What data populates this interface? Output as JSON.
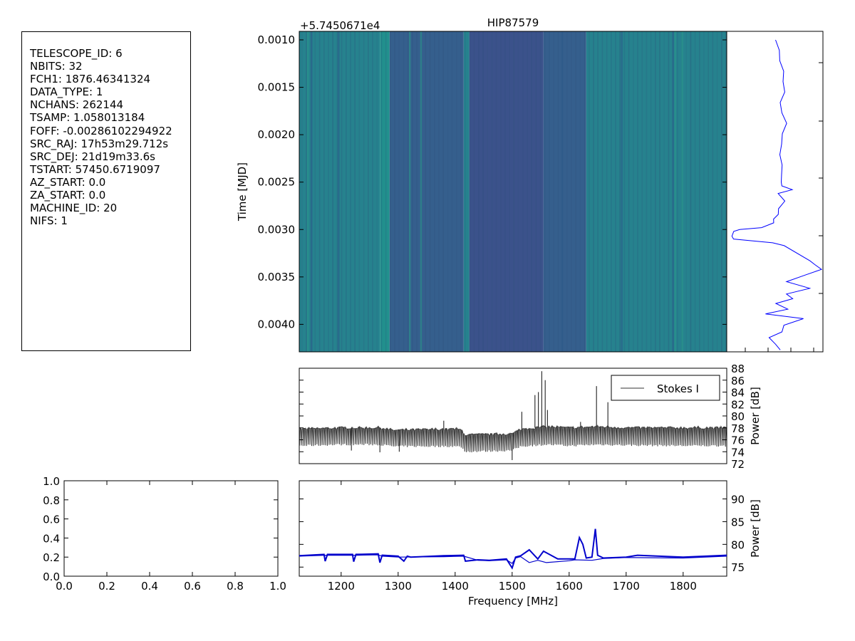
{
  "colors": {
    "waterfall_light": "#21908d",
    "waterfall_mid": "#26828e",
    "waterfall_dark": "#355f8d",
    "waterfall_darker": "#3b528b",
    "timeseries_line": "#0000ff",
    "spectrum_line": "#333333",
    "bottom_lines": "#0000cc"
  },
  "header": {
    "lines": [
      "TELESCOPE_ID:  6",
      "NBITS:  32",
      "FCH1:  1876.46341324",
      "DATA_TYPE:  1",
      "NCHANS:  262144",
      "TSAMP:  1.058013184",
      "FOFF:  -0.00286102294922",
      "SRC_RAJ:  17h53m29.712s",
      "SRC_DEJ:  21d19m33.6s",
      "TSTART:  57450.6719097",
      "AZ_START:  0.0",
      "ZA_START:  0.0",
      "MACHINE_ID:  20",
      "NIFS:  1"
    ]
  },
  "chart_data": [
    {
      "id": "waterfall",
      "type": "heatmap",
      "title": "HIP87579",
      "offset_text": "+5.7450671e4",
      "ylabel": "Time [MJD]",
      "ylim": [
        0.00429,
        0.00091
      ],
      "xlim": [
        1126.5,
        1876.5
      ],
      "yticks": [
        0.001,
        0.0015,
        0.002,
        0.0025,
        0.003,
        0.0035,
        0.004
      ],
      "ytick_labels": [
        "0.0010",
        "0.0015",
        "0.0020",
        "0.0025",
        "0.0030",
        "0.0035",
        "0.0040"
      ],
      "grid": false,
      "bands": [
        {
          "x": [
            1126.5,
            1268
          ],
          "level": "mid"
        },
        {
          "x": [
            1268,
            1285
          ],
          "level": "light"
        },
        {
          "x": [
            1285,
            1415
          ],
          "level": "dark"
        },
        {
          "x": [
            1415,
            1425
          ],
          "level": "mid"
        },
        {
          "x": [
            1425,
            1555
          ],
          "level": "darker"
        },
        {
          "x": [
            1555,
            1630
          ],
          "level": "dark"
        },
        {
          "x": [
            1630,
            1876.5
          ],
          "level": "mid"
        }
      ]
    },
    {
      "id": "time_series",
      "type": "line",
      "note": "integrated power vs time, orientation vertical",
      "ylim": [
        0.00429,
        0.00091
      ],
      "x": [
        0.52,
        0.53,
        0.55,
        0.58,
        0.6,
        0.58,
        0.57,
        0.58,
        0.6,
        0.6,
        0.57,
        0.58,
        0.55,
        0.56,
        0.54,
        0.6,
        0.66,
        0.55,
        0.54,
        0.6,
        0.56,
        0.55,
        0.55,
        0.5,
        0.48,
        0.38,
        0.1,
        0.04,
        0.02,
        0.05,
        0.5,
        0.62,
        0.85,
        0.95,
        1.0,
        0.8,
        0.65,
        0.85,
        0.6,
        0.66,
        0.48,
        0.62,
        0.4,
        0.82,
        0.58,
        0.55,
        0.44,
        0.52,
        0.56
      ],
      "y": [
        0.001,
        0.00111,
        0.00122,
        0.00133,
        0.00144,
        0.00155,
        0.00166,
        0.00177,
        0.00188,
        0.00199,
        0.0021,
        0.00221,
        0.00232,
        0.00243,
        0.0025,
        0.00254,
        0.00258,
        0.00262,
        0.00266,
        0.0027,
        0.00274,
        0.00278,
        0.00284,
        0.00289,
        0.00293,
        0.00298,
        0.003,
        0.00302,
        0.00307,
        0.0031,
        0.00314,
        0.00317,
        0.00333,
        0.00337,
        0.00342,
        0.00348,
        0.00355,
        0.00362,
        0.00368,
        0.00373,
        0.00378,
        0.00384,
        0.00389,
        0.00394,
        0.00401,
        0.00408,
        0.00414,
        0.00421,
        0.00427
      ]
    },
    {
      "id": "spectrum",
      "type": "line",
      "legend": [
        "Stokes I"
      ],
      "legend_position": "upper right",
      "ylabel": "Power [dB]",
      "xlim": [
        1126.5,
        1876.5
      ],
      "ylim": [
        72,
        88
      ],
      "yticks": [
        72,
        74,
        76,
        78,
        80,
        82,
        84,
        86,
        88
      ],
      "ytick_labels": [
        "72",
        "74",
        "76",
        "78",
        "80",
        "82",
        "84",
        "86",
        "88"
      ],
      "base_x": [
        1126.5,
        1200,
        1268,
        1290,
        1400,
        1412,
        1416,
        1500,
        1515,
        1560,
        1600,
        1650,
        1700,
        1800,
        1876.5
      ],
      "base_top": [
        77.8,
        78.0,
        78.0,
        77.6,
        77.8,
        77.6,
        76.8,
        77.0,
        77.8,
        78.2,
        78.0,
        78.2,
        78.0,
        78.0,
        78.0
      ],
      "base_bottom": [
        75.0,
        75.2,
        75.2,
        74.9,
        74.9,
        74.8,
        74.0,
        74.2,
        74.9,
        75.2,
        75.0,
        75.2,
        75.1,
        75.0,
        75.0
      ],
      "spikes": [
        {
          "x": 1218,
          "y": 74.2
        },
        {
          "x": 1268,
          "y": 73.9
        },
        {
          "x": 1302,
          "y": 74.0
        },
        {
          "x": 1500,
          "y": 72.6
        },
        {
          "x": 1517,
          "y": 80.7
        },
        {
          "x": 1540,
          "y": 83.5
        },
        {
          "x": 1546,
          "y": 84.0
        },
        {
          "x": 1552,
          "y": 87.5
        },
        {
          "x": 1558,
          "y": 86.0
        },
        {
          "x": 1562,
          "y": 81.0
        },
        {
          "x": 1620,
          "y": 79.0
        },
        {
          "x": 1648,
          "y": 85.0
        },
        {
          "x": 1668,
          "y": 82.3
        },
        {
          "x": 1380,
          "y": 79.2
        }
      ]
    },
    {
      "id": "empty_axes",
      "type": "line",
      "xlim": [
        0.0,
        1.0
      ],
      "ylim": [
        0.0,
        1.0
      ],
      "xticks": [
        0.0,
        0.2,
        0.4,
        0.6,
        0.8,
        1.0
      ],
      "xtick_labels": [
        "0.0",
        "0.2",
        "0.4",
        "0.6",
        "0.8",
        "1.0"
      ],
      "yticks": [
        0.0,
        0.2,
        0.4,
        0.6,
        0.8,
        1.0
      ],
      "ytick_labels": [
        "0.0",
        "0.2",
        "0.4",
        "0.6",
        "0.8",
        "1.0"
      ]
    },
    {
      "id": "kurtosis_spectrum",
      "type": "line",
      "xlabel": "Frequency [MHz]",
      "ylabel": "Power [dB]",
      "xlim": [
        1126.5,
        1876.5
      ],
      "ylim": [
        73,
        94
      ],
      "xticks": [
        1200,
        1300,
        1400,
        1500,
        1600,
        1700,
        1800
      ],
      "xtick_labels": [
        "1200",
        "1300",
        "1400",
        "1500",
        "1600",
        "1700",
        "1800"
      ],
      "yticks": [
        75,
        80,
        85,
        90
      ],
      "ytick_labels": [
        "75",
        "80",
        "85",
        "90"
      ],
      "series": [
        {
          "x": [
            1126.5,
            1170,
            1172,
            1176,
            1220,
            1222,
            1226,
            1265,
            1268,
            1272,
            1300,
            1310,
            1316,
            1322,
            1380,
            1415,
            1418,
            1440,
            1460,
            1490,
            1500,
            1506,
            1515,
            1530,
            1545,
            1555,
            1580,
            1610,
            1618,
            1624,
            1630,
            1640,
            1646,
            1650,
            1660,
            1700,
            1720,
            1800,
            1876.5
          ],
          "y": [
            77.5,
            77.8,
            76.3,
            77.8,
            77.8,
            76.2,
            77.8,
            77.9,
            76.0,
            77.6,
            77.4,
            76.3,
            77.4,
            77.2,
            77.5,
            77.6,
            76.3,
            76.6,
            76.5,
            76.8,
            74.8,
            77.2,
            77.5,
            78.8,
            76.8,
            78.5,
            76.8,
            76.8,
            81.5,
            80.0,
            77.0,
            77.2,
            83.4,
            77.6,
            77.0,
            77.2,
            77.6,
            77.2,
            77.6
          ]
        },
        {
          "x": [
            1126.5,
            1170,
            1176,
            1220,
            1226,
            1265,
            1272,
            1300,
            1380,
            1415,
            1440,
            1460,
            1490,
            1500,
            1506,
            1515,
            1530,
            1545,
            1560,
            1600,
            1610,
            1640,
            1660,
            1700,
            1800,
            1876.5
          ],
          "y": [
            77.4,
            77.6,
            77.6,
            77.6,
            77.6,
            77.7,
            77.4,
            77.2,
            77.3,
            77.4,
            76.5,
            76.4,
            76.6,
            75.8,
            77.0,
            77.3,
            76.0,
            76.5,
            76.0,
            76.4,
            76.6,
            76.5,
            76.9,
            77.1,
            77.0,
            77.4
          ]
        }
      ]
    }
  ]
}
